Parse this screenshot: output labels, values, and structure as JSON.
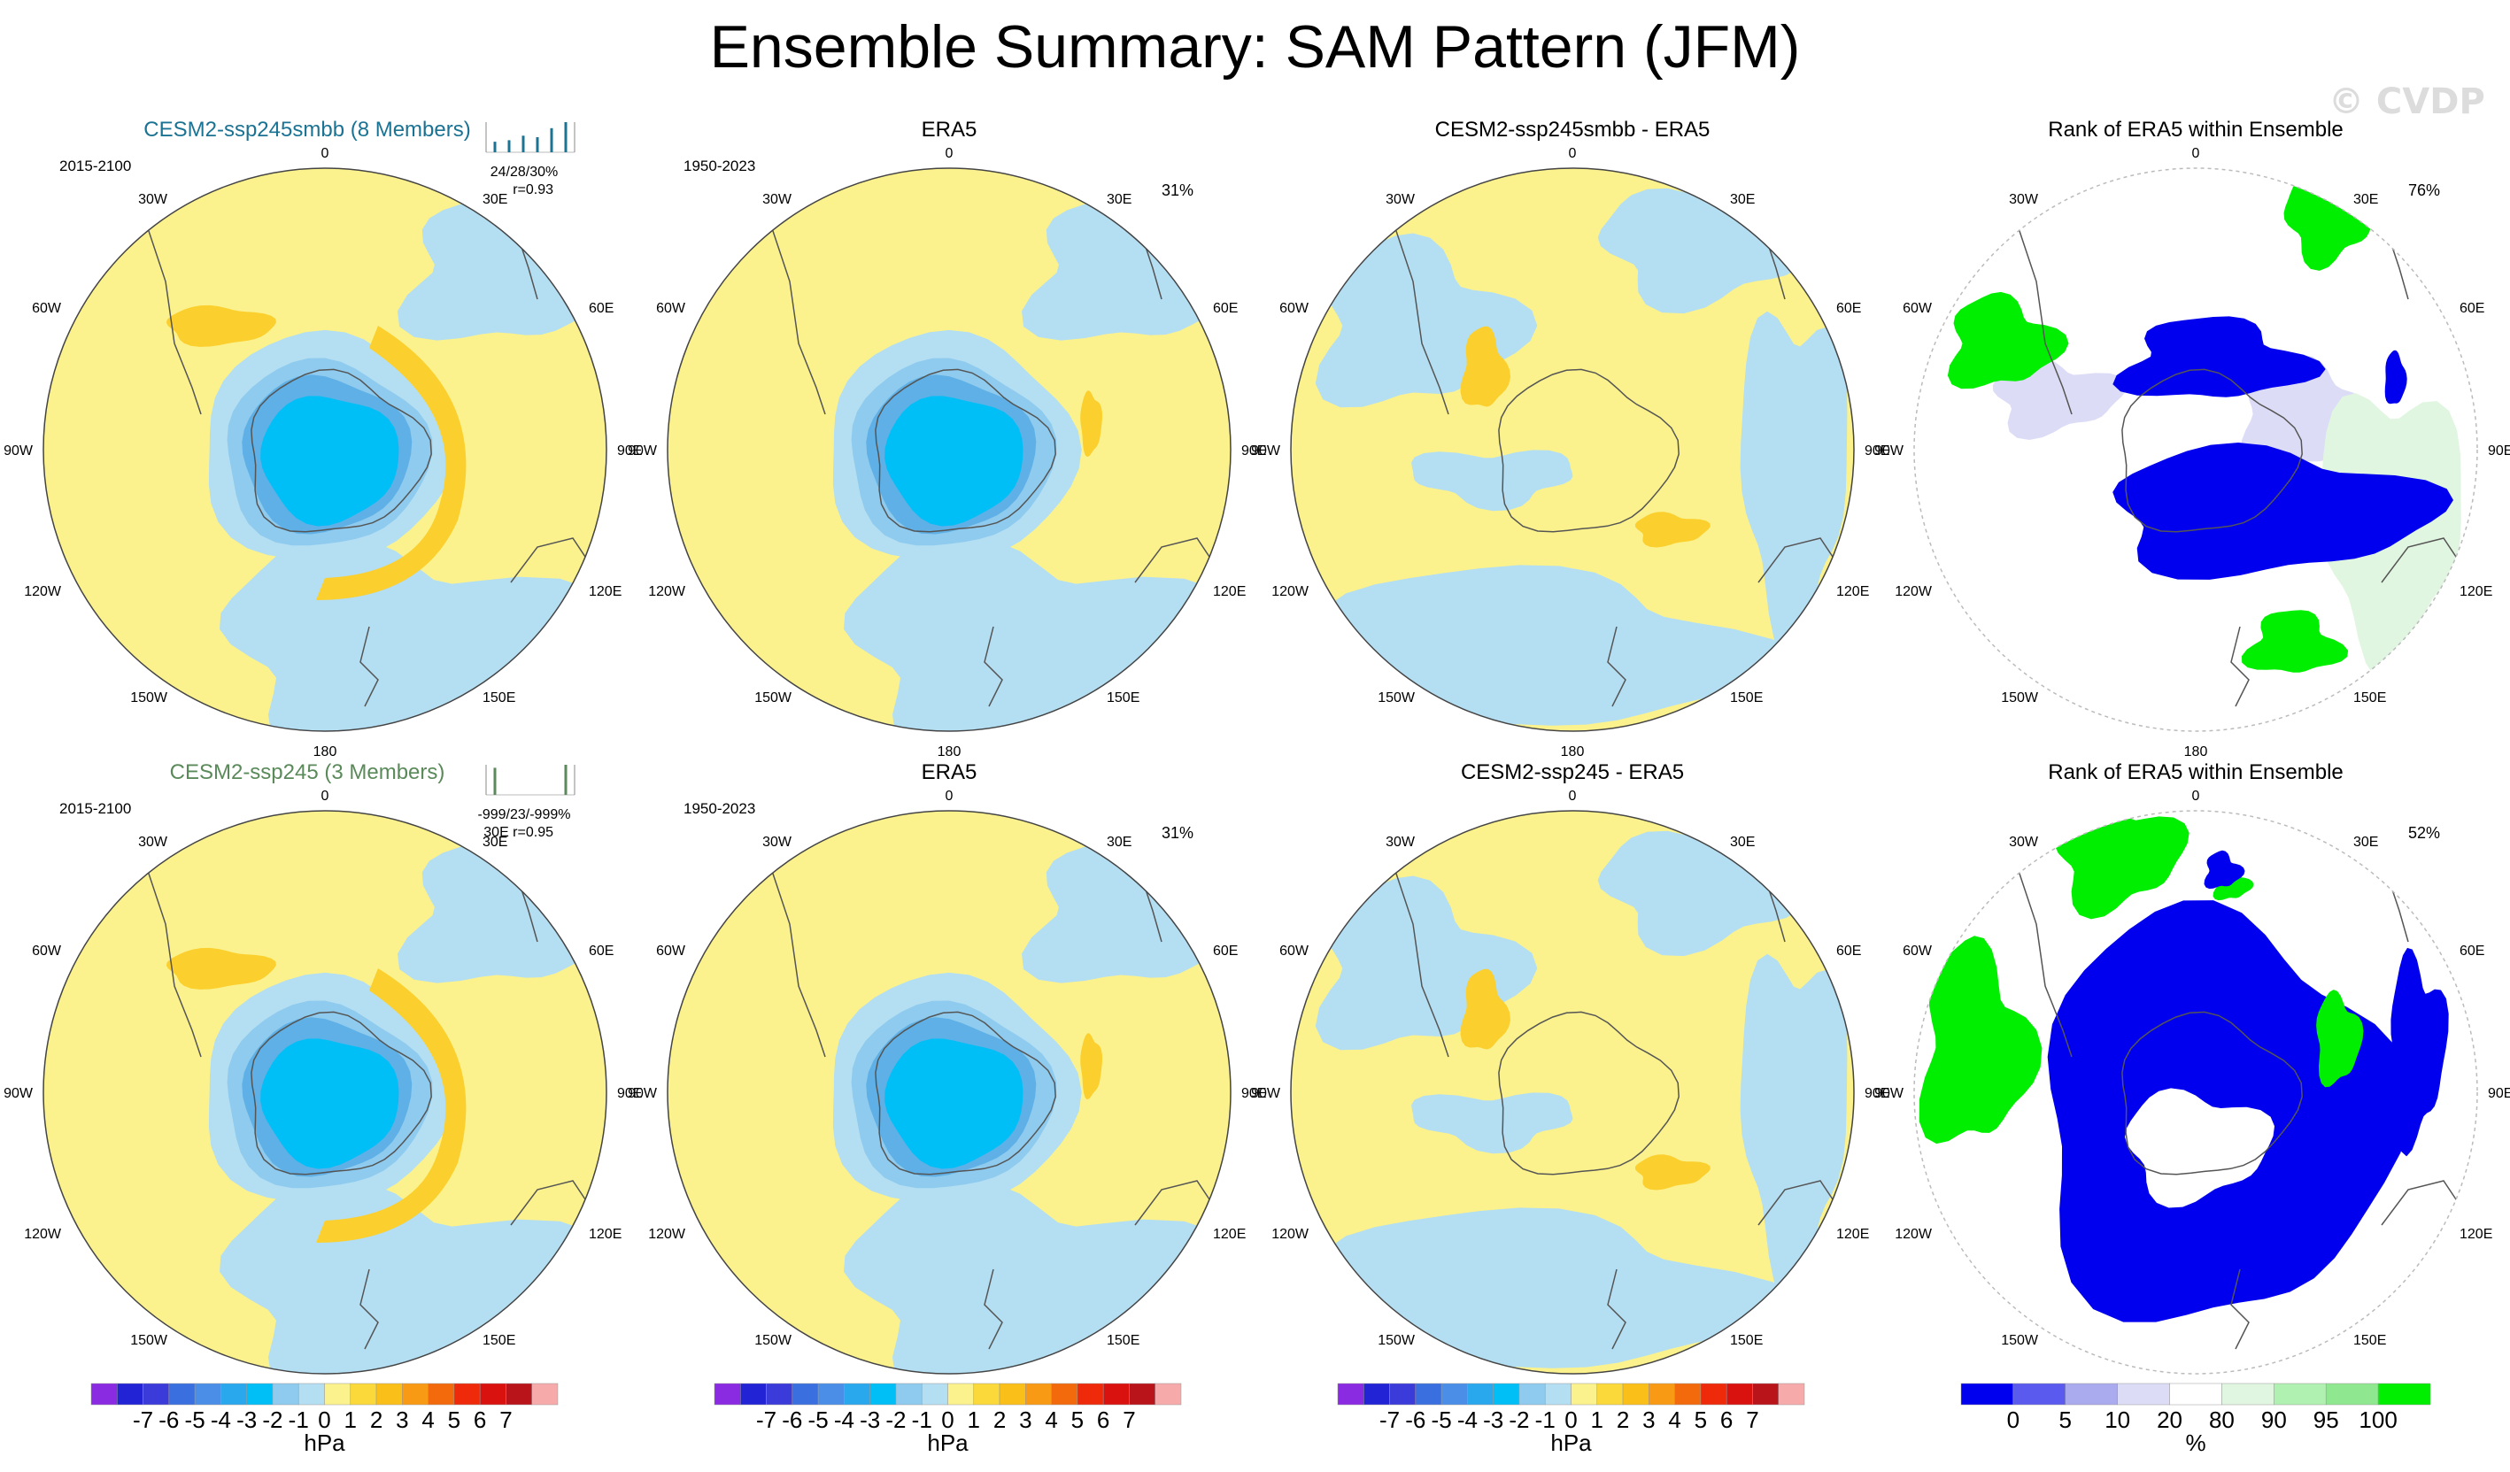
{
  "title": "Ensemble Summary: SAM Pattern (JFM)",
  "watermark": "© CVDP",
  "colors": {
    "yellow": "#fbf28d",
    "lightblue": "#b4def2",
    "blue2": "#8ecbee",
    "blue3": "#5eb0e6",
    "cyan": "#00bff7",
    "gold": "#fbcf2d",
    "rankBlue": "#0000ee",
    "rankGreen": "#00ee00",
    "rankLav": "#dcdcf6",
    "rankMint": "#e1f6e1",
    "ensembleTitleTop": "#1b7393",
    "ensembleTitleBottom": "#5a8a5a"
  },
  "rows": [
    {
      "panels": [
        {
          "kind": "ensemble",
          "title": "CESM2-ssp245smbb (8 Members)",
          "period": "2015-2100",
          "stats": "24/28/30%",
          "stats2": "r=0.93",
          "minibars": [
            0.35,
            0.4,
            0.55,
            0.5,
            0.8,
            1
          ]
        },
        {
          "kind": "obs",
          "title": "ERA5",
          "period": "1950-2023",
          "pct": "31%"
        },
        {
          "kind": "diff",
          "title": "CESM2-ssp245smbb - ERA5"
        },
        {
          "kind": "rank",
          "title": "Rank of ERA5 within Ensemble",
          "pct": "76%"
        }
      ]
    },
    {
      "panels": [
        {
          "kind": "ensemble",
          "title": "CESM2-ssp245 (3 Members)",
          "period": "2015-2100",
          "stats": "-999/23/-999%",
          "stats2": "30E r=0.95",
          "minibars": [
            0.9,
            1
          ]
        },
        {
          "kind": "obs",
          "title": "ERA5",
          "period": "1950-2023",
          "pct": "31%"
        },
        {
          "kind": "diff",
          "title": "CESM2-ssp245 - ERA5"
        },
        {
          "kind": "rank",
          "title": "Rank of ERA5 within Ensemble",
          "pct": "52%"
        }
      ]
    }
  ],
  "lon_labels": {
    "top": "0",
    "bottom": "180",
    "upper_left": "30W",
    "upper_right": "30E",
    "mid_upper_left": "60W",
    "mid_upper_right": "60E",
    "left": "90W",
    "right": "90E",
    "mid_lower_left": "120W",
    "mid_lower_right": "120E",
    "lower_left": "150W",
    "lower_right": "150E"
  },
  "hpa_colorbar": {
    "labels": [
      "-7",
      "-6",
      "-5",
      "-4",
      "-3",
      "-2",
      "-1",
      "0",
      "1",
      "2",
      "3",
      "4",
      "5",
      "6",
      "7"
    ],
    "unit": "hPa",
    "colors": [
      "#8a2be2",
      "#2323d6",
      "#3b3bd9",
      "#3a6fe0",
      "#4a8ee8",
      "#2aa8ee",
      "#00bff7",
      "#8ecbee",
      "#b4def2",
      "#fbf28d",
      "#fbd93a",
      "#fbbf1a",
      "#f99a14",
      "#f36a0d",
      "#ee2a0a",
      "#d9120f",
      "#b9141a",
      "#f7aaaa"
    ]
  },
  "rank_colorbar": {
    "labels": [
      "0",
      "5",
      "10",
      "20",
      "80",
      "90",
      "95",
      "100"
    ],
    "unit": "%",
    "colors": [
      "#0000ee",
      "#5a5aee",
      "#aaaaee",
      "#dcdcf6",
      "#ffffff",
      "#e1f6e1",
      "#b0f0b0",
      "#8fe88f",
      "#00ee00"
    ]
  }
}
